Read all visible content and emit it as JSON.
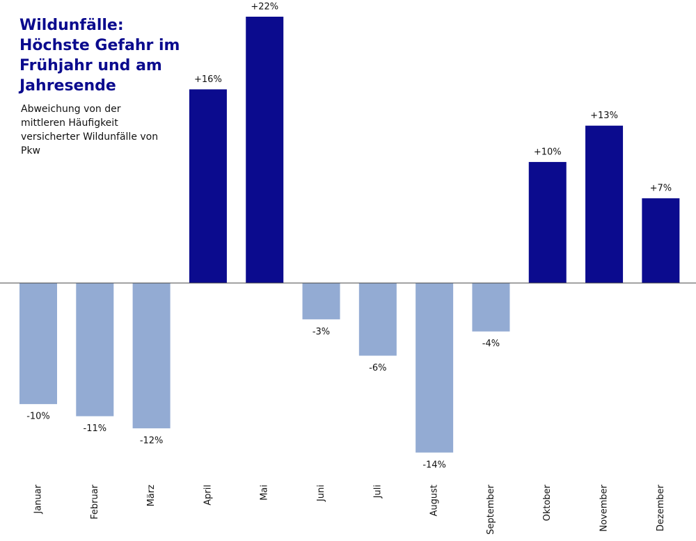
{
  "chart_data": {
    "type": "bar",
    "title": "Wildunfälle: Höchste Gefahr im Frühjahr und am Jahresende",
    "subtitle": "Abweichung von der mittleren Häufigkeit versicherter Wildunfälle von Pkw",
    "categories": [
      "Januar",
      "Februar",
      "März",
      "April",
      "Mai",
      "Juni",
      "Juli",
      "August",
      "September",
      "Oktober",
      "November",
      "Dezember"
    ],
    "values": [
      -10,
      -11,
      -12,
      16,
      22,
      -3,
      -6,
      -14,
      -4,
      10,
      13,
      7
    ],
    "value_labels": [
      "-10%",
      "-11%",
      "-12%",
      "+16%",
      "+22%",
      "-3%",
      "-6%",
      "-14%",
      "-4%",
      "+10%",
      "+13%",
      "+7%"
    ],
    "colors": [
      "#93abd3",
      "#93abd3",
      "#93abd3",
      "#0b0b8e",
      "#0b0b8e",
      "#93abd3",
      "#93abd3",
      "#93abd3",
      "#93abd3",
      "#0b0b8e",
      "#0b0b8e",
      "#0b0b8e"
    ],
    "ylim": [
      -16,
      23
    ]
  }
}
